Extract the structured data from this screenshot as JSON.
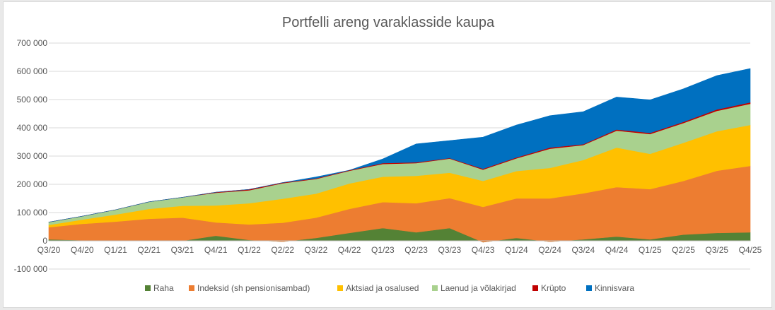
{
  "chart_data": {
    "type": "area",
    "title": "Portfelli areng varaklasside kaupa",
    "xlabel": "",
    "ylabel": "",
    "ylim": [
      -100000,
      700000
    ],
    "y_ticks": [
      700000,
      600000,
      500000,
      400000,
      300000,
      200000,
      100000,
      0,
      -100000
    ],
    "y_tick_labels": [
      "700 000",
      "600 000",
      "500 000",
      "400 000",
      "300 000",
      "200 000",
      "100 000",
      "0",
      "-100 000"
    ],
    "x_tick_labels": [
      "Q3/20",
      "Q4/20",
      "Q1/21",
      "Q2/21",
      "Q3/21",
      "Q4/21",
      "Q1/22",
      "Q2/22",
      "Q3/22",
      "Q4/22",
      "Q1/23",
      "Q2/23",
      "Q3/23",
      "Q4/23",
      "Q1/24",
      "Q2/24",
      "Q3/24",
      "Q4/24",
      "Q1/25",
      "Q2/25",
      "Q3/25",
      "Q4/25"
    ],
    "stacked": true,
    "grid": true,
    "legend": "bottom",
    "series": [
      {
        "name": "Raha",
        "color": "#548235",
        "values": [
          5000,
          2000,
          0,
          0,
          0,
          18000,
          3000,
          -3000,
          10000,
          28000,
          45000,
          30000,
          45000,
          -5000,
          10000,
          -3000,
          5000,
          15000,
          5000,
          22000,
          28000,
          30000
        ]
      },
      {
        "name": "Indeksid (sh pensionisambad)",
        "color": "#ed7d31",
        "values": [
          43000,
          58000,
          68000,
          78000,
          82000,
          47000,
          55000,
          67000,
          72000,
          85000,
          92000,
          103000,
          106000,
          125000,
          140000,
          153000,
          163000,
          175000,
          178000,
          190000,
          220000,
          235000
        ]
      },
      {
        "name": "Aktsiad ja osalused",
        "color": "#ffc000",
        "values": [
          8000,
          15000,
          25000,
          35000,
          42000,
          60000,
          75000,
          85000,
          85000,
          90000,
          90000,
          97000,
          90000,
          92000,
          97000,
          108000,
          118000,
          140000,
          125000,
          135000,
          140000,
          145000
        ]
      },
      {
        "name": "Laenud ja võlakirjad",
        "color": "#a9d18e",
        "values": [
          10000,
          12000,
          17000,
          25000,
          30000,
          45000,
          46000,
          55000,
          52000,
          45000,
          45000,
          45000,
          50000,
          40000,
          45000,
          68000,
          53000,
          60000,
          70000,
          70000,
          72000,
          75000
        ]
      },
      {
        "name": "Krüpto",
        "color": "#c00000",
        "values": [
          0,
          0,
          0,
          0,
          0,
          2000,
          3000,
          2000,
          2000,
          2000,
          3000,
          3000,
          2000,
          3000,
          3000,
          4000,
          3000,
          4000,
          4000,
          4000,
          5000,
          5000
        ]
      },
      {
        "name": "Kinnisvara",
        "color": "#0070c0",
        "values": [
          0,
          0,
          0,
          0,
          0,
          0,
          0,
          0,
          5000,
          0,
          15000,
          65000,
          62000,
          112000,
          115000,
          113000,
          115000,
          115000,
          117000,
          117000,
          120000,
          120000
        ]
      }
    ]
  }
}
